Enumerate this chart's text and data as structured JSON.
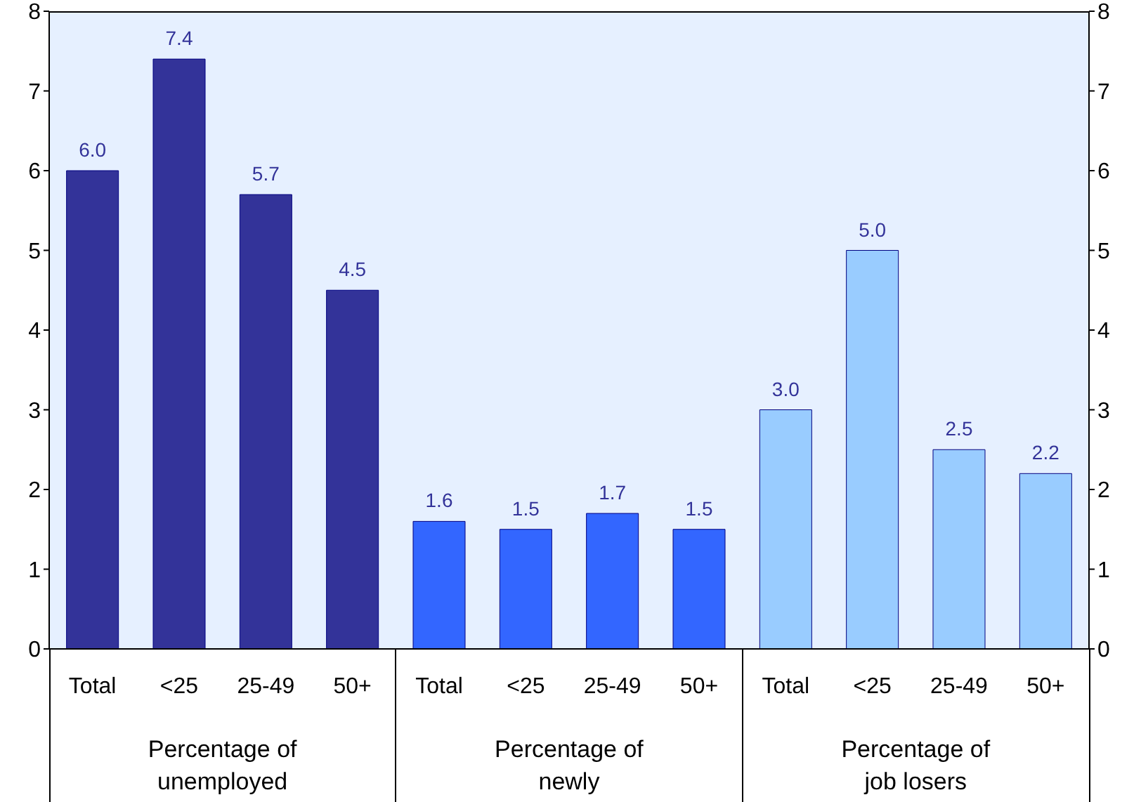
{
  "chart_data": {
    "type": "bar",
    "categories": [
      "Total",
      "<25",
      "25-49",
      "50+",
      "Total",
      "<25",
      "25-49",
      "50+",
      "Total",
      "<25",
      "25-49",
      "50+"
    ],
    "values": [
      6.0,
      7.4,
      5.7,
      4.5,
      1.6,
      1.5,
      1.7,
      1.5,
      3.0,
      5.0,
      2.5,
      2.2
    ],
    "value_labels": [
      "6.0",
      "7.4",
      "5.7",
      "4.5",
      "1.6",
      "1.5",
      "1.7",
      "1.5",
      "3.0",
      "5.0",
      "2.5",
      "2.2"
    ],
    "colors": [
      "#333399",
      "#333399",
      "#333399",
      "#333399",
      "#3366ff",
      "#3366ff",
      "#3366ff",
      "#3366ff",
      "#99ccff",
      "#99ccff",
      "#99ccff",
      "#99ccff"
    ],
    "annotations": [
      "Percentage of unemployed",
      "Percentage of newly unemployed",
      "Percentage of job losers"
    ],
    "ylim": [
      0,
      8
    ],
    "yticks": [
      0,
      1,
      2,
      3,
      4,
      5,
      6,
      7,
      8
    ],
    "y2lim": [
      0,
      8
    ],
    "y2ticks": [
      0,
      1,
      2,
      3,
      4,
      5,
      6,
      7,
      8
    ],
    "grid": false
  }
}
